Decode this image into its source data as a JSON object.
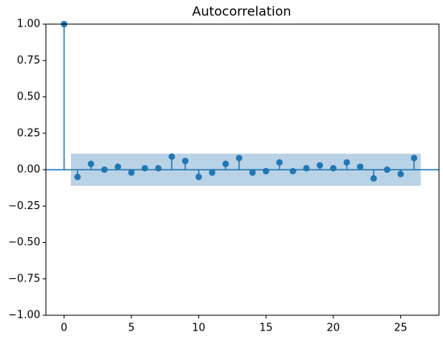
{
  "chart_data": {
    "type": "stem",
    "title": "Autocorrelation",
    "x": [
      0,
      1,
      2,
      3,
      4,
      5,
      6,
      7,
      8,
      9,
      10,
      11,
      12,
      13,
      14,
      15,
      16,
      17,
      18,
      19,
      20,
      21,
      22,
      23,
      24,
      25,
      26
    ],
    "values": [
      1.0,
      -0.05,
      0.04,
      0.0,
      0.02,
      -0.02,
      0.01,
      0.01,
      0.09,
      0.06,
      -0.05,
      -0.02,
      0.04,
      0.08,
      -0.02,
      -0.01,
      0.05,
      -0.01,
      0.01,
      0.03,
      0.01,
      0.05,
      0.02,
      -0.06,
      0.0,
      -0.03,
      0.08
    ],
    "color": "#1f77b4",
    "confidence_band": {
      "x": [
        0.5,
        26.5
      ],
      "lower": -0.11,
      "upper": 0.11,
      "color": "#b3cde3"
    },
    "xlim": [
      -1.35,
      27.85
    ],
    "ylim": [
      -1.0,
      1.0
    ],
    "xticks": [
      0,
      5,
      10,
      15,
      20,
      25
    ],
    "yticks": [
      {
        "value": -1.0,
        "label": "−1.00"
      },
      {
        "value": -0.75,
        "label": "−0.75"
      },
      {
        "value": -0.5,
        "label": "−0.50"
      },
      {
        "value": -0.25,
        "label": "−0.25"
      },
      {
        "value": 0,
        "label": "0.00"
      },
      {
        "value": 0.25,
        "label": "0.25"
      },
      {
        "value": 0.5,
        "label": "0.50"
      },
      {
        "value": 0.75,
        "label": "0.75"
      },
      {
        "value": 1.0,
        "label": "1.00"
      }
    ]
  }
}
